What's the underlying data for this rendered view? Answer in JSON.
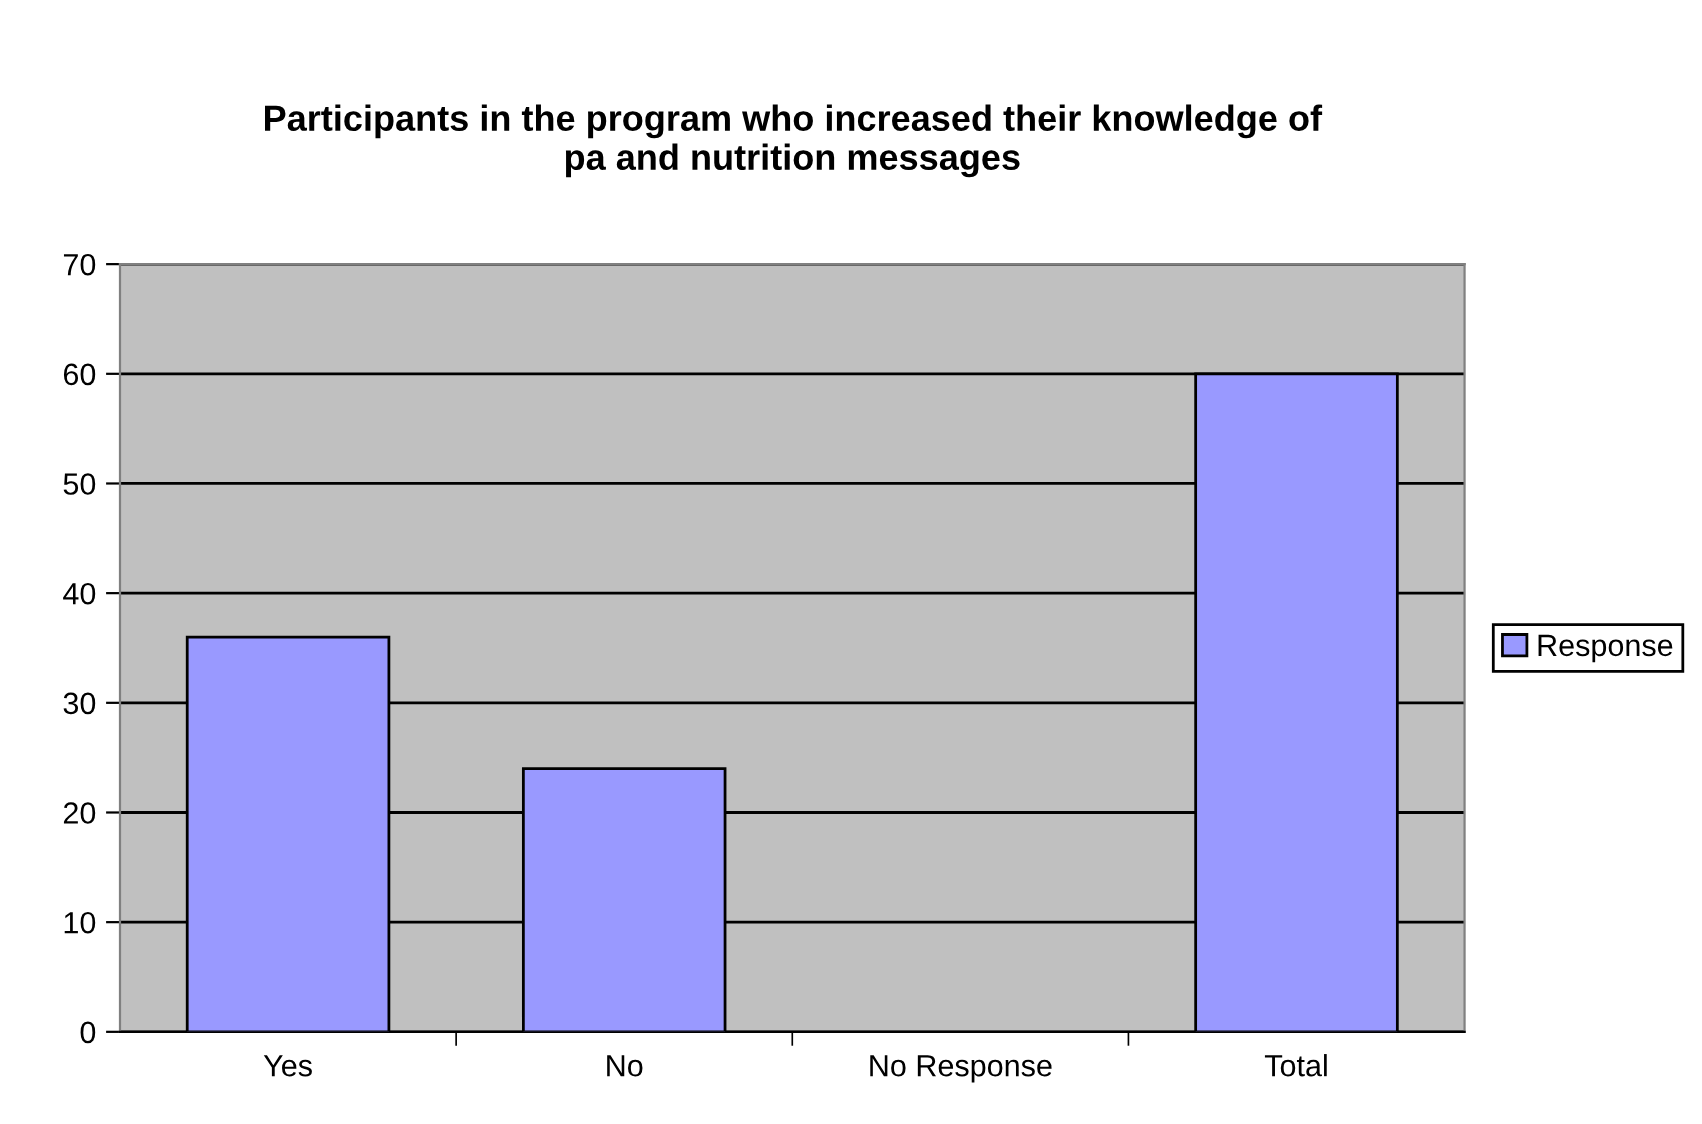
{
  "chart_data": {
    "type": "bar",
    "title": "Participants in the program who increased their knowledge of\npa and nutrition messages",
    "categories": [
      "Yes",
      "No",
      "No Response",
      "Total"
    ],
    "series": [
      {
        "name": "Response",
        "color": "#9999ff",
        "values": [
          36,
          24,
          null,
          60
        ]
      }
    ],
    "ylim": [
      0,
      70
    ],
    "yticks": [
      0,
      10,
      20,
      30,
      40,
      50,
      60,
      70
    ],
    "grid": "y",
    "legend": "right"
  }
}
